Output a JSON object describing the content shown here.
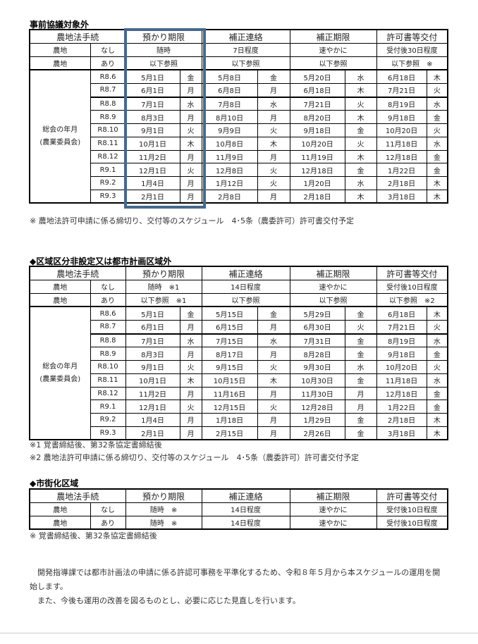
{
  "sections": [
    {
      "title": "事前協議対象外",
      "headers": [
        "農地法手続",
        "預かり期限",
        "補正連絡",
        "補正期限",
        "許可書等交付"
      ],
      "row_nashi": [
        "農地",
        "なし",
        "随時",
        "7日程度",
        "速やかに",
        "受付後30日程度"
      ],
      "row_ari": [
        "農地",
        "あり",
        "以下参照",
        "以下参照",
        "以下参照",
        "以下参照　※"
      ],
      "group_label": "総会の年月\n(農業委員会)",
      "rows": [
        [
          "R8.6",
          "5月1日",
          "金",
          "5月8日",
          "金",
          "5月20日",
          "水",
          "6月18日",
          "木"
        ],
        [
          "R8.7",
          "6月1日",
          "月",
          "6月8日",
          "月",
          "6月18日",
          "木",
          "7月21日",
          "火"
        ],
        [
          "R8.8",
          "7月1日",
          "水",
          "7月8日",
          "水",
          "7月21日",
          "火",
          "8月19日",
          "水"
        ],
        [
          "R8.9",
          "8月3日",
          "月",
          "8月10日",
          "月",
          "8月20日",
          "木",
          "9月18日",
          "金"
        ],
        [
          "R8.10",
          "9月1日",
          "火",
          "9月9日",
          "火",
          "9月18日",
          "金",
          "10月20日",
          "火"
        ],
        [
          "R8.11",
          "10月1日",
          "木",
          "10月8日",
          "木",
          "10月20日",
          "火",
          "11月18日",
          "水"
        ],
        [
          "R8.12",
          "11月2日",
          "月",
          "11月9日",
          "月",
          "11月19日",
          "木",
          "12月18日",
          "金"
        ],
        [
          "R9.1",
          "12月1日",
          "火",
          "12月8日",
          "火",
          "12月18日",
          "金",
          "1月22日",
          "金"
        ],
        [
          "R9.2",
          "1月4日",
          "月",
          "1月12日",
          "火",
          "1月20日",
          "水",
          "2月18日",
          "木"
        ],
        [
          "R9.3",
          "2月1日",
          "月",
          "2月8日",
          "月",
          "2月18日",
          "木",
          "3月18日",
          "木"
        ]
      ],
      "notes": [
        "※ 農地法許可申請に係る締切り、交付等のスケジュール　4･5条（農委許可）許可書交付予定"
      ]
    },
    {
      "title": "◆区域区分非設定又は都市計画区域外",
      "headers": [
        "農地法手続",
        "預かり期限",
        "補正連絡",
        "補正期限",
        "許可書等交付"
      ],
      "row_nashi": [
        "農地",
        "なし",
        "随時　※1",
        "14日程度",
        "速やかに",
        "受付後10日程度"
      ],
      "row_ari": [
        "農地",
        "あり",
        "以下参照　※1",
        "以下参照",
        "以下参照",
        "以下参照　※2"
      ],
      "group_label": "総会の年月\n(農業委員会)",
      "rows": [
        [
          "R8.6",
          "5月1日",
          "金",
          "5月15日",
          "金",
          "5月29日",
          "金",
          "6月18日",
          "木"
        ],
        [
          "R8.7",
          "6月1日",
          "月",
          "6月15日",
          "月",
          "6月30日",
          "火",
          "7月21日",
          "火"
        ],
        [
          "R8.8",
          "7月1日",
          "水",
          "7月15日",
          "水",
          "7月31日",
          "金",
          "8月19日",
          "水"
        ],
        [
          "R8.9",
          "8月3日",
          "月",
          "8月17日",
          "月",
          "8月28日",
          "金",
          "9月18日",
          "金"
        ],
        [
          "R8.10",
          "9月1日",
          "火",
          "9月15日",
          "火",
          "9月30日",
          "水",
          "10月20日",
          "火"
        ],
        [
          "R8.11",
          "10月1日",
          "木",
          "10月15日",
          "木",
          "10月30日",
          "金",
          "11月18日",
          "水"
        ],
        [
          "R8.12",
          "11月2日",
          "月",
          "11月16日",
          "月",
          "11月30日",
          "月",
          "12月18日",
          "金"
        ],
        [
          "R9.1",
          "12月1日",
          "火",
          "12月15日",
          "火",
          "12月28日",
          "月",
          "1月22日",
          "金"
        ],
        [
          "R9.2",
          "1月4日",
          "月",
          "1月18日",
          "月",
          "1月29日",
          "金",
          "2月18日",
          "木"
        ],
        [
          "R9.3",
          "2月1日",
          "月",
          "2月15日",
          "月",
          "2月26日",
          "金",
          "3月18日",
          "木"
        ]
      ],
      "notes": [
        "※1 覚書締結後、第32条協定書締結後",
        "※2 農地法許可申請に係る締切り、交付等のスケジュール　4･5条（農委許可）許可書交付予定"
      ]
    },
    {
      "title": "◆市街化区域",
      "headers": [
        "農地法手続",
        "預かり期限",
        "補正連絡",
        "補正期限",
        "許可書等交付"
      ],
      "row_nashi": [
        "農地",
        "なし",
        "随時　※",
        "14日程度",
        "速やかに",
        "受付後10日程度"
      ],
      "row_ari": [
        "農地",
        "あり",
        "随時　※",
        "14日程度",
        "速やかに",
        "受付後10日程度"
      ],
      "rows": [],
      "notes": [
        "※ 覚書締結後、第32条協定書締結後"
      ]
    }
  ],
  "closing": [
    "　開発指導課では都市計画法の申請に係る許認可事務を平準化するため、令和８年５月から本スケジュールの運用を開始します。",
    "　また、今後も運用の改善を図るものとし、必要に応じた見直しを行います。"
  ],
  "colors": {
    "highlight_box": "#44698f"
  }
}
